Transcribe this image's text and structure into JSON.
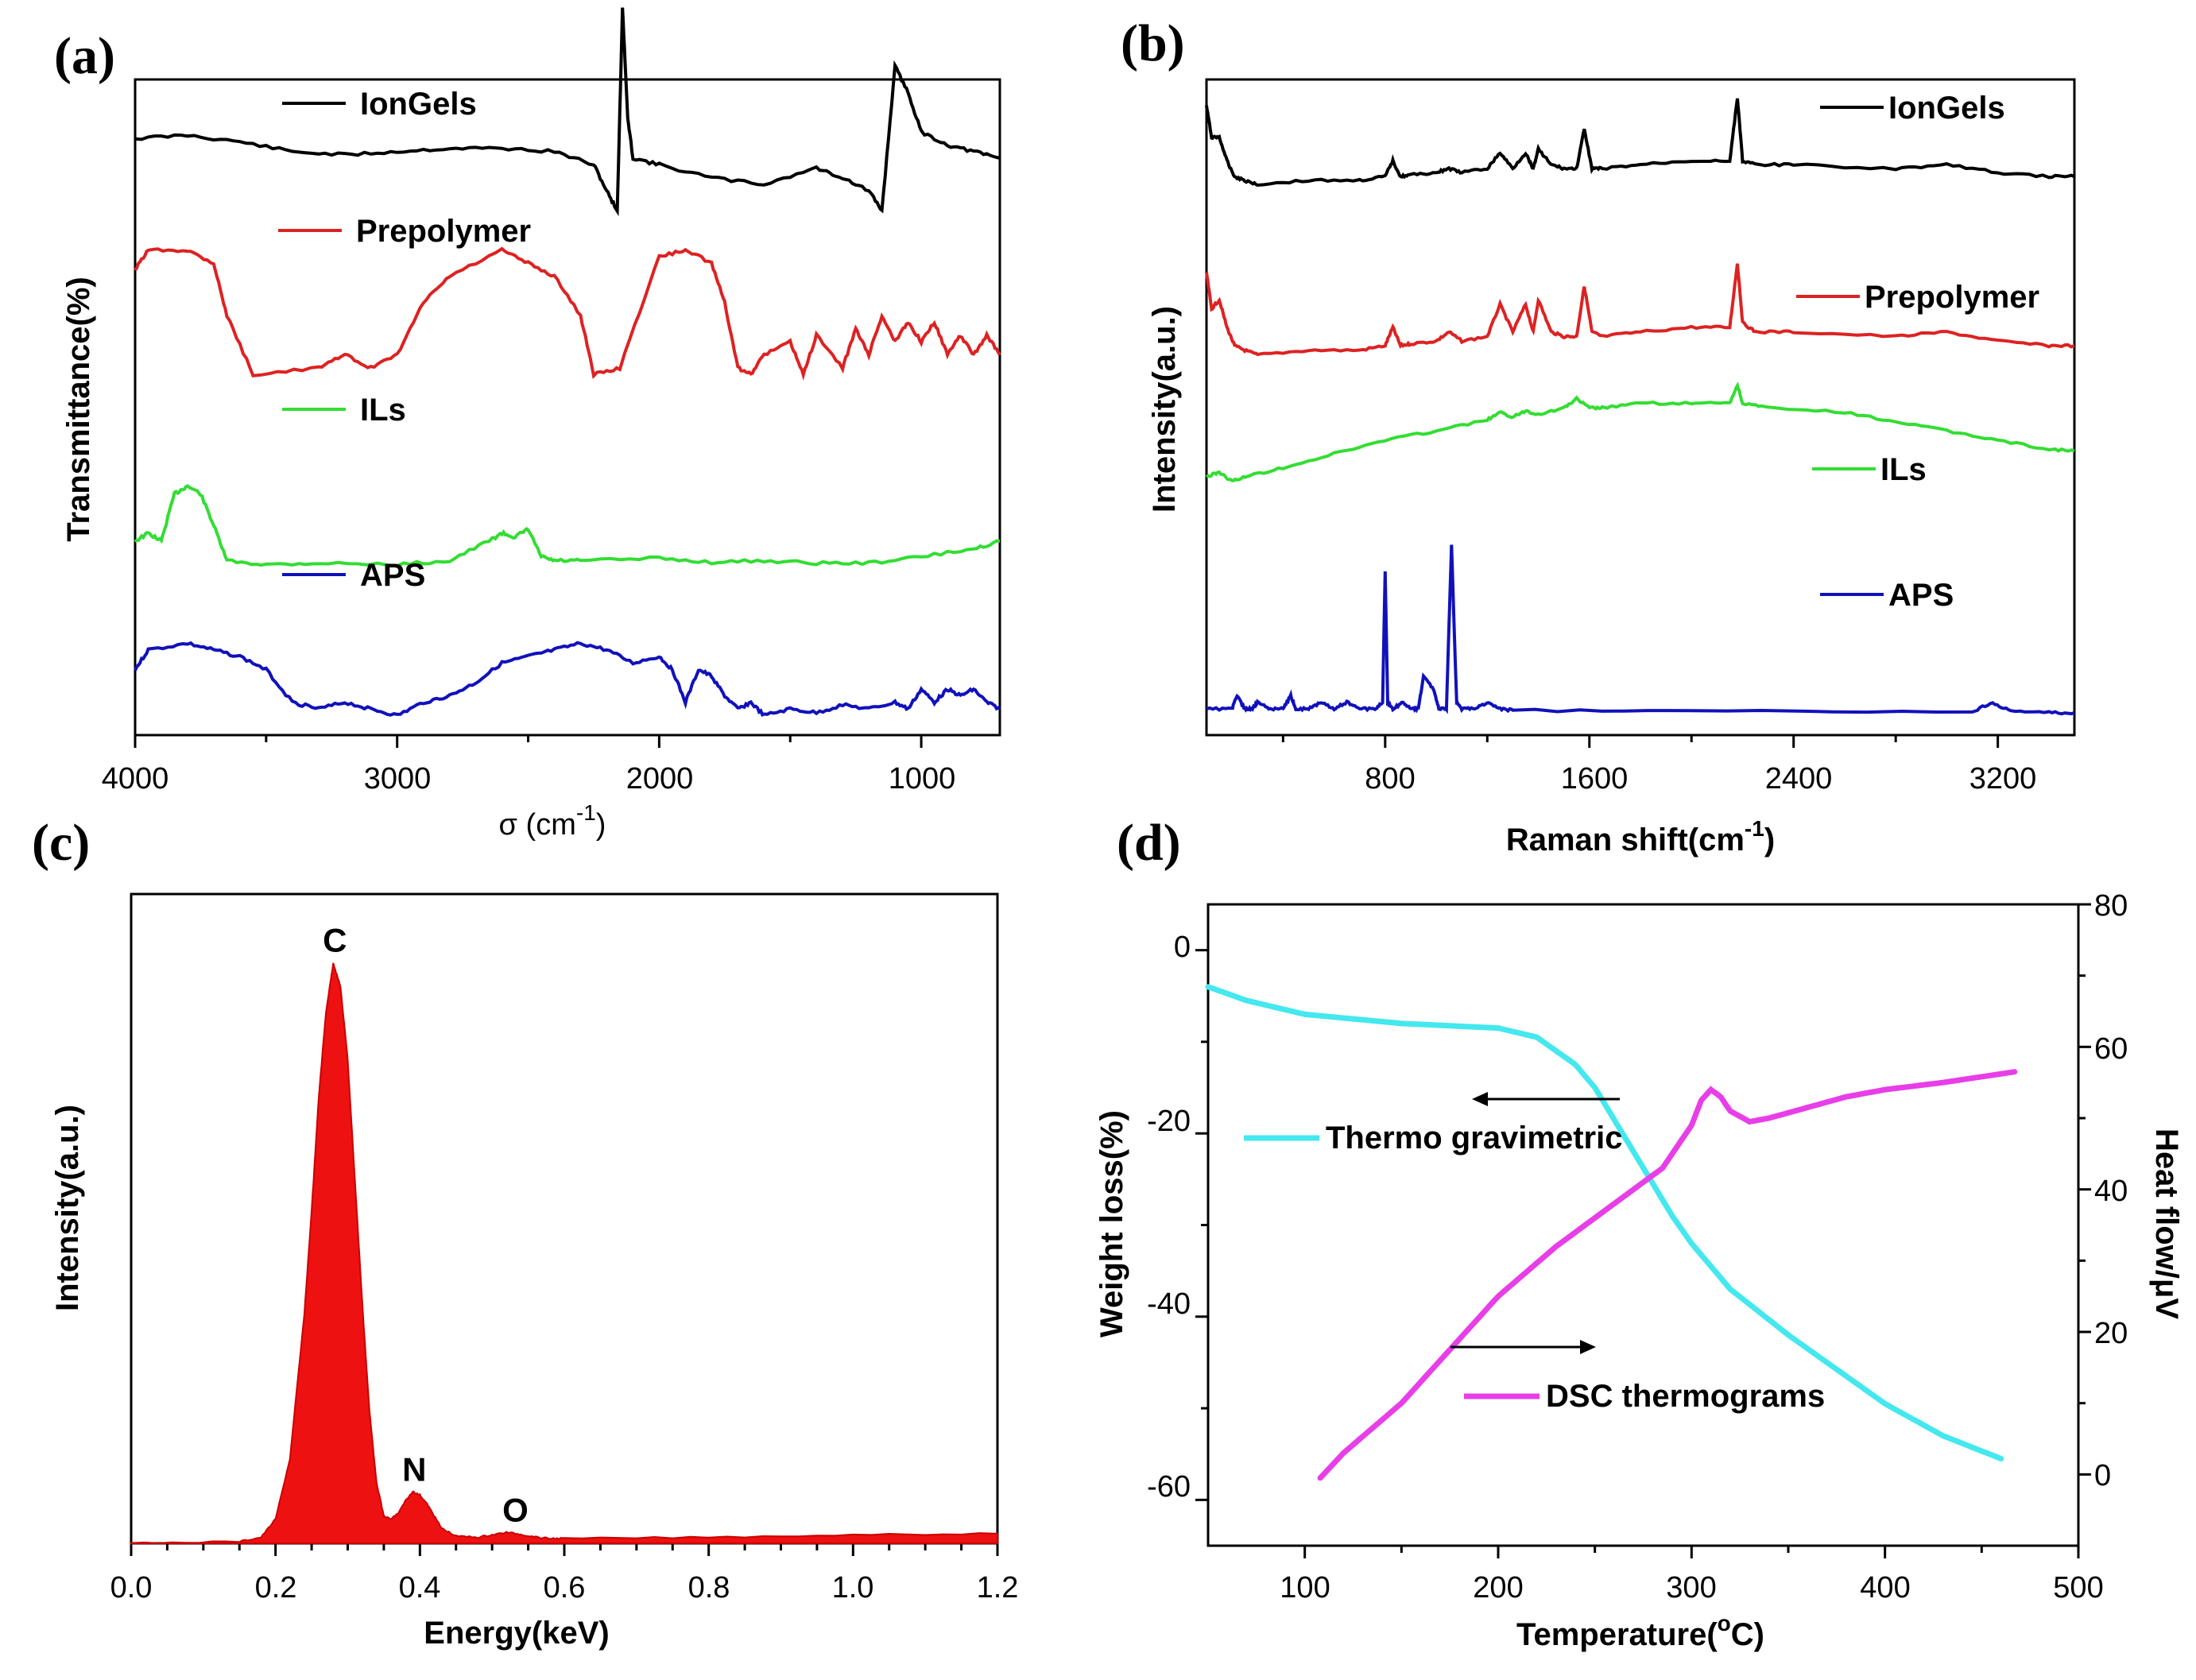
{
  "chart_data": [
    {
      "panel": "(a)",
      "type": "line",
      "xlabel": "σ (cm",
      "xlabel_sup": "-1",
      "xlabel_close": ")",
      "ylabel": "Transmittance(%)",
      "xlim": [
        4000,
        700
      ],
      "xticks": [
        "4000",
        "3000",
        "2000",
        "1000"
      ],
      "series": [
        {
          "name": "IonGels",
          "color": "#000000",
          "offset": 0.86,
          "amp": 0.1,
          "x": [
            4000,
            3800,
            3600,
            3400,
            3200,
            3000,
            2800,
            2600,
            2400,
            2250,
            2200,
            2160,
            2140,
            2120,
            2100,
            2000,
            1800,
            1600,
            1400,
            1300,
            1200,
            1150,
            1100,
            1050,
            1000,
            900,
            800,
            700
          ],
          "y": [
            0.5,
            0.55,
            0.45,
            0.3,
            0.25,
            0.3,
            0.35,
            0.35,
            0.3,
            0.1,
            -0.3,
            -0.6,
            2.5,
            0.8,
            0.2,
            0.1,
            -0.1,
            -0.2,
            0.05,
            -0.1,
            -0.3,
            -0.6,
            1.6,
            1.2,
            0.6,
            0.4,
            0.3,
            0.2
          ]
        },
        {
          "name": "Prepolymer",
          "color": "#dd2222",
          "offset": 0.54,
          "amp": 0.2,
          "x": [
            4000,
            3950,
            3800,
            3700,
            3650,
            3550,
            3300,
            3200,
            3100,
            3000,
            2900,
            2800,
            2600,
            2500,
            2400,
            2300,
            2250,
            2150,
            2000,
            1900,
            1800,
            1750,
            1700,
            1650,
            1600,
            1500,
            1450,
            1400,
            1300,
            1250,
            1200,
            1150,
            1100,
            1050,
            1000,
            950,
            900,
            850,
            800,
            750,
            700
          ],
          "y": [
            0.85,
            1.0,
            1.0,
            0.9,
            0.5,
            0.05,
            0.1,
            0.2,
            0.1,
            0.2,
            0.6,
            0.8,
            1.0,
            0.9,
            0.8,
            0.5,
            0.05,
            0.1,
            0.95,
            1.0,
            0.9,
            0.6,
            0.1,
            0.05,
            0.2,
            0.3,
            0.05,
            0.35,
            0.1,
            0.4,
            0.2,
            0.5,
            0.3,
            0.45,
            0.3,
            0.45,
            0.2,
            0.35,
            0.2,
            0.35,
            0.2
          ]
        },
        {
          "name": "ILs",
          "color": "#33dd33",
          "offset": 0.26,
          "amp": 0.12,
          "x": [
            4000,
            3950,
            3900,
            3850,
            3800,
            3750,
            3700,
            3650,
            3500,
            3300,
            3000,
            2800,
            2650,
            2600,
            2550,
            2500,
            2450,
            2400,
            2300,
            2000,
            1800,
            1600,
            1400,
            1200,
            1000,
            800,
            700
          ],
          "y": [
            0.3,
            0.4,
            0.3,
            0.9,
            1.0,
            0.9,
            0.5,
            0.05,
            0.0,
            0.02,
            0.0,
            0.05,
            0.3,
            0.4,
            0.35,
            0.45,
            0.1,
            0.05,
            0.05,
            0.08,
            0.03,
            0.05,
            0.02,
            0.02,
            0.1,
            0.2,
            0.3
          ]
        },
        {
          "name": "APS",
          "color": "#1111bb",
          "offset": 0.03,
          "amp": 0.2,
          "x": [
            4000,
            3950,
            3800,
            3700,
            3600,
            3500,
            3400,
            3300,
            3200,
            3100,
            3000,
            2900,
            2800,
            2700,
            2600,
            2500,
            2400,
            2300,
            2200,
            2100,
            2000,
            1950,
            1900,
            1850,
            1800,
            1750,
            1700,
            1650,
            1600,
            1500,
            1400,
            1300,
            1200,
            1100,
            1050,
            1000,
            950,
            900,
            850,
            800,
            750,
            700
          ],
          "y": [
            0.35,
            0.5,
            0.55,
            0.5,
            0.45,
            0.35,
            0.1,
            0.05,
            0.1,
            0.05,
            0.0,
            0.1,
            0.15,
            0.25,
            0.4,
            0.45,
            0.5,
            0.55,
            0.5,
            0.4,
            0.45,
            0.35,
            0.1,
            0.35,
            0.3,
            0.15,
            0.05,
            0.1,
            0.0,
            0.05,
            0.02,
            0.08,
            0.05,
            0.1,
            0.05,
            0.2,
            0.1,
            0.2,
            0.15,
            0.2,
            0.1,
            0.05
          ]
        }
      ]
    },
    {
      "panel": "(b)",
      "type": "line",
      "xlabel": "Raman shift(cm",
      "xlabel_sup": "-1",
      "xlabel_close": ")",
      "ylabel": "Intensity(a.u.)",
      "xlim": [
        100,
        3500
      ],
      "xticks": [
        "800",
        "1600",
        "2400",
        "3200"
      ],
      "series": [
        {
          "name": "IonGels",
          "color": "#000000",
          "offset": 0.84,
          "amp": 0.12,
          "x": [
            100,
            120,
            150,
            180,
            210,
            250,
            300,
            500,
            700,
            800,
            830,
            860,
            900,
            1000,
            1050,
            1100,
            1200,
            1250,
            1300,
            1350,
            1380,
            1400,
            1450,
            1500,
            1550,
            1580,
            1610,
            1650,
            1800,
            2000,
            2150,
            2180,
            2200,
            2250,
            2400,
            2800,
            3000,
            3200,
            3400,
            3500
          ],
          "y": [
            1.0,
            0.6,
            0.6,
            0.3,
            0.1,
            0.05,
            0.0,
            0.05,
            0.05,
            0.1,
            0.3,
            0.1,
            0.12,
            0.15,
            0.2,
            0.15,
            0.2,
            0.4,
            0.2,
            0.4,
            0.2,
            0.45,
            0.25,
            0.2,
            0.2,
            0.7,
            0.2,
            0.2,
            0.25,
            0.3,
            0.3,
            1.1,
            0.3,
            0.25,
            0.25,
            0.2,
            0.25,
            0.15,
            0.1,
            0.1
          ]
        },
        {
          "name": "Prepolymer",
          "color": "#dd2222",
          "offset": 0.58,
          "amp": 0.14,
          "x": [
            100,
            120,
            150,
            180,
            210,
            250,
            300,
            500,
            700,
            800,
            830,
            860,
            900,
            1000,
            1050,
            1100,
            1200,
            1250,
            1300,
            1350,
            1380,
            1400,
            1450,
            1500,
            1550,
            1580,
            1610,
            1650,
            1800,
            2000,
            2150,
            2180,
            2200,
            2250,
            2400,
            2800,
            3000,
            3200,
            3400,
            3500
          ],
          "y": [
            0.9,
            0.5,
            0.6,
            0.3,
            0.1,
            0.05,
            0.0,
            0.05,
            0.05,
            0.1,
            0.3,
            0.1,
            0.12,
            0.15,
            0.25,
            0.15,
            0.2,
            0.55,
            0.25,
            0.55,
            0.25,
            0.6,
            0.25,
            0.2,
            0.2,
            0.75,
            0.25,
            0.2,
            0.25,
            0.3,
            0.3,
            1.0,
            0.35,
            0.25,
            0.25,
            0.2,
            0.25,
            0.15,
            0.1,
            0.1
          ]
        },
        {
          "name": "ILs",
          "color": "#33dd33",
          "offset": 0.38,
          "amp": 0.14,
          "x": [
            100,
            150,
            200,
            250,
            400,
            600,
            800,
            1000,
            1200,
            1250,
            1300,
            1350,
            1400,
            1500,
            1550,
            1600,
            1650,
            1800,
            2000,
            2150,
            2180,
            2200,
            2300,
            2600,
            2800,
            3000,
            3200,
            3400,
            3500
          ],
          "y": [
            0.1,
            0.15,
            0.05,
            0.1,
            0.2,
            0.35,
            0.5,
            0.6,
            0.72,
            0.8,
            0.75,
            0.82,
            0.78,
            0.85,
            0.95,
            0.85,
            0.85,
            0.9,
            0.9,
            0.9,
            1.1,
            0.9,
            0.85,
            0.8,
            0.7,
            0.6,
            0.5,
            0.4,
            0.38
          ]
        },
        {
          "name": "APS",
          "color": "#1111bb",
          "offset": 0.03,
          "amp": 0.2,
          "x": [
            100,
            200,
            220,
            250,
            280,
            300,
            350,
            400,
            430,
            450,
            500,
            550,
            600,
            650,
            700,
            760,
            790,
            800,
            810,
            830,
            870,
            900,
            930,
            950,
            990,
            1010,
            1040,
            1060,
            1080,
            1100,
            1150,
            1200,
            1250,
            1300,
            2000,
            3100,
            3180,
            3250,
            3400,
            3500
          ],
          "y": [
            0.05,
            0.05,
            0.15,
            0.05,
            0.05,
            0.1,
            0.05,
            0.05,
            0.15,
            0.05,
            0.05,
            0.1,
            0.05,
            0.1,
            0.05,
            0.05,
            0.1,
            1.1,
            0.1,
            0.05,
            0.1,
            0.05,
            0.05,
            0.3,
            0.2,
            0.05,
            0.05,
            1.3,
            0.1,
            0.05,
            0.05,
            0.1,
            0.05,
            0.04,
            0.03,
            0.03,
            0.1,
            0.03,
            0.02,
            0.02
          ]
        }
      ]
    },
    {
      "panel": "(c)",
      "type": "area",
      "xlabel": "Energy(keV)",
      "ylabel": "Intensity(a.u.)",
      "xlim": [
        0.0,
        1.2
      ],
      "ylim": [
        0,
        1.05
      ],
      "xticks": [
        "0.0",
        "0.2",
        "0.4",
        "0.6",
        "0.8",
        "1.0",
        "1.2"
      ],
      "color": "#ee1111",
      "x": [
        0.0,
        0.15,
        0.18,
        0.2,
        0.22,
        0.24,
        0.25,
        0.26,
        0.27,
        0.28,
        0.29,
        0.3,
        0.31,
        0.32,
        0.33,
        0.34,
        0.35,
        0.36,
        0.37,
        0.38,
        0.39,
        0.4,
        0.41,
        0.42,
        0.43,
        0.45,
        0.48,
        0.5,
        0.52,
        0.54,
        0.56,
        0.58,
        0.6,
        0.8,
        1.0,
        1.2
      ],
      "y": [
        0.0,
        0.003,
        0.01,
        0.04,
        0.14,
        0.38,
        0.55,
        0.74,
        0.88,
        0.96,
        0.92,
        0.8,
        0.6,
        0.4,
        0.22,
        0.1,
        0.045,
        0.04,
        0.05,
        0.07,
        0.085,
        0.08,
        0.065,
        0.045,
        0.025,
        0.012,
        0.01,
        0.014,
        0.018,
        0.015,
        0.01,
        0.008,
        0.008,
        0.01,
        0.014,
        0.016
      ],
      "peaks": [
        {
          "label": "C",
          "x": 0.28,
          "y": 0.96
        },
        {
          "label": "N",
          "x": 0.39,
          "y": 0.085
        },
        {
          "label": "O",
          "x": 0.53,
          "y": 0.018
        }
      ]
    },
    {
      "panel": "(d)",
      "type": "line",
      "xlabel": "Temperature(",
      "xlabel_sup": "o",
      "xlabel_close": "C)",
      "ylabel": "Weight loss(%)",
      "y2label": "Heat flow/μV",
      "xlim": [
        50,
        500
      ],
      "ylim": [
        -65,
        5
      ],
      "y2lim": [
        -10,
        80
      ],
      "xticks": [
        "100",
        "200",
        "300",
        "400",
        "500"
      ],
      "yticks": [
        "0",
        "-20",
        "-40",
        "-60"
      ],
      "y2ticks": [
        "80",
        "60",
        "40",
        "20",
        "0"
      ],
      "series": [
        {
          "name": "Thermo gravimetric",
          "color": "#44e8ee",
          "axis": "left",
          "x": [
            50,
            70,
            100,
            150,
            200,
            220,
            240,
            250,
            260,
            270,
            280,
            290,
            300,
            320,
            350,
            380,
            400,
            430,
            460
          ],
          "y": [
            -4,
            -5.5,
            -7,
            -8,
            -8.5,
            -9.5,
            -12.5,
            -15,
            -18.5,
            -22,
            -25.5,
            -29,
            -32,
            -37,
            -42,
            -46.5,
            -49.5,
            -53,
            -55.5
          ]
        },
        {
          "name": "DSC thermograms",
          "color": "#e83ee8",
          "axis": "right",
          "x": [
            108,
            120,
            150,
            180,
            200,
            230,
            260,
            285,
            300,
            305,
            310,
            315,
            320,
            330,
            340,
            360,
            380,
            400,
            430,
            467
          ],
          "y": [
            -0.5,
            3,
            10,
            19,
            25,
            32,
            38,
            43,
            49,
            52.5,
            54,
            53,
            51,
            49.5,
            50,
            51.5,
            53,
            54,
            55,
            56.5
          ]
        }
      ]
    }
  ],
  "legend_labels": {
    "a": [
      "IonGels",
      "Prepolymer",
      "ILs",
      "APS"
    ],
    "b": [
      "IonGels",
      "Prepolymer",
      "ILs",
      "APS"
    ],
    "d": [
      "Thermo gravimetric",
      "DSC thermograms"
    ]
  }
}
